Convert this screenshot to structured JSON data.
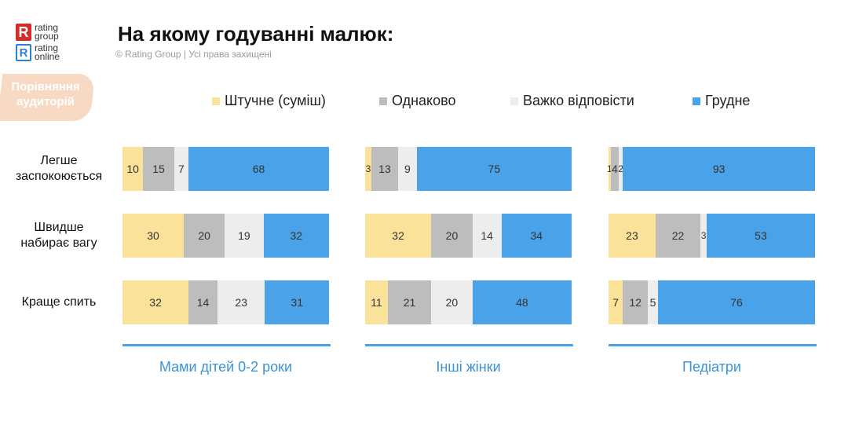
{
  "logo": {
    "line1": "rating",
    "line2": "group",
    "line3": "rating",
    "line4": "online"
  },
  "header": {
    "title": "На якому годуванні малюк:",
    "copyright": "© Rating Group | Усі права захищені"
  },
  "badge": {
    "text": "Порівняння аудиторій"
  },
  "colors": {
    "artificial": "#fbe29a",
    "equal": "#bdbdbd",
    "hard": "#ededed",
    "breast": "#4aa3e8",
    "accent": "#3b93d6"
  },
  "chart_data": {
    "type": "bar",
    "orientation": "horizontal-stacked",
    "title": "На якому годуванні малюк:",
    "legend": [
      "Штучне (суміш)",
      "Однаково",
      "Важко відповісти",
      "Грудне"
    ],
    "categories": [
      "Легше заспокоюється",
      "Швидше набирає вагу",
      "Краще спить"
    ],
    "category_lines": [
      [
        "Легше",
        "заспокоюється"
      ],
      [
        "Швидше",
        "набирає вагу"
      ],
      [
        "Краще спить"
      ]
    ],
    "groups": [
      {
        "name": "Мами дітей 0-2 роки",
        "rows": [
          [
            10,
            15,
            7,
            68
          ],
          [
            30,
            20,
            19,
            32
          ],
          [
            32,
            14,
            23,
            31
          ]
        ],
        "labels": [
          [
            "10",
            "15",
            "7",
            "68"
          ],
          [
            "30",
            "20",
            "19",
            "32"
          ],
          [
            "32",
            "14",
            "23",
            "31"
          ]
        ]
      },
      {
        "name": "Інші жінки",
        "rows": [
          [
            3,
            13,
            9,
            75
          ],
          [
            32,
            20,
            14,
            34
          ],
          [
            11,
            21,
            20,
            48
          ]
        ],
        "labels": [
          [
            "3",
            "13",
            "9",
            "75"
          ],
          [
            "32",
            "20",
            "14",
            "34"
          ],
          [
            "11",
            "21",
            "20",
            "48"
          ]
        ]
      },
      {
        "name": "Педіатри",
        "rows": [
          [
            1,
            4,
            2,
            93
          ],
          [
            23,
            22,
            3,
            53
          ],
          [
            7,
            12,
            5,
            76
          ]
        ],
        "labels": [
          [
            "1",
            "4",
            "2",
            "93"
          ],
          [
            "23",
            "22",
            "3",
            "53"
          ],
          [
            "7",
            "12",
            "5",
            "76"
          ]
        ]
      }
    ]
  }
}
